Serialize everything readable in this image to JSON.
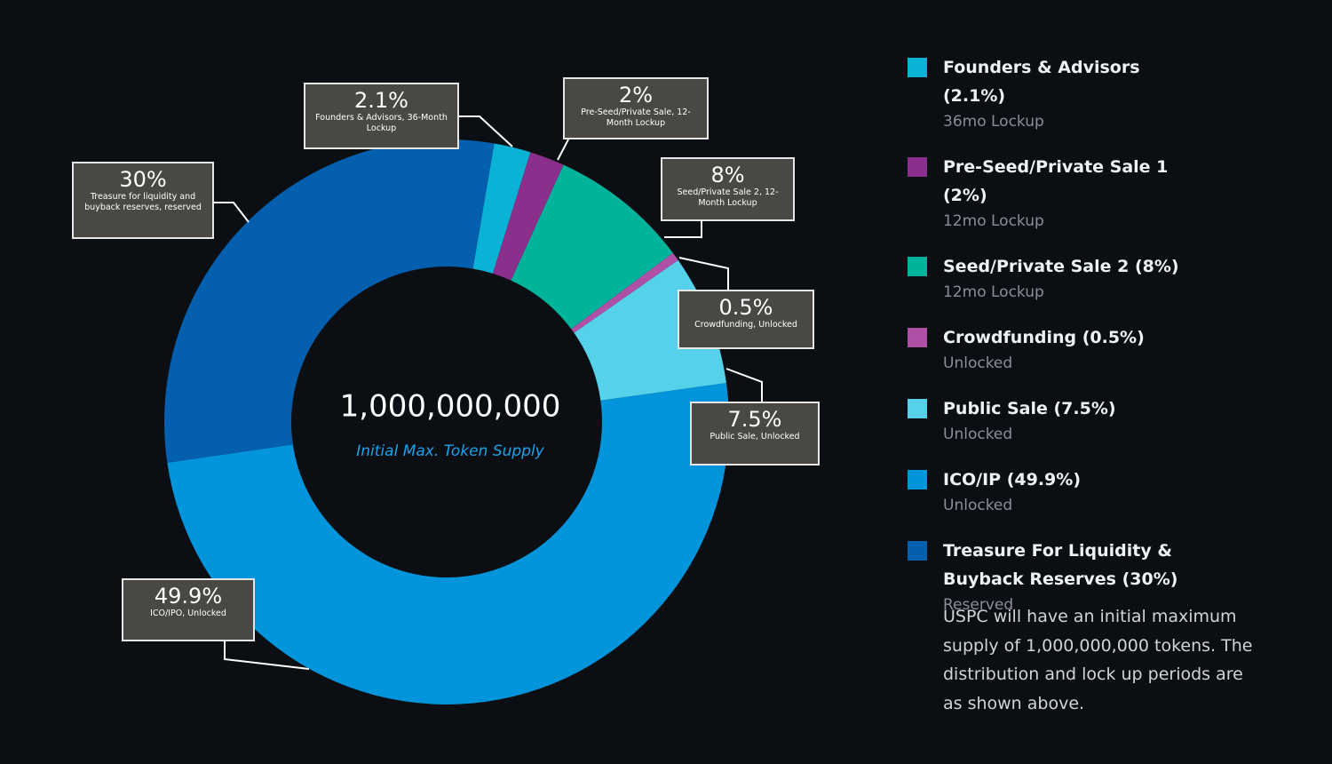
{
  "chart_data": {
    "type": "pie",
    "center_value": "1,000,000,000",
    "center_label": "Initial Max. Token Supply",
    "categories": [
      "Founders & Advisors (2.1%)",
      "Pre-Seed/Private Sale 1 (2%)",
      "Seed/Private Sale 2 (8%)",
      "Crowdfunding (0.5%)",
      "Public Sale (7.5%)",
      "ICO/IP (49.9%)",
      "Treasure For Liquidity & Buyback Reserves (30%)"
    ],
    "sublabels": [
      "36mo Lockup",
      "12mo Lockup",
      "12mo Lockup",
      "Unlocked",
      "Unlocked",
      "Unlocked",
      "Reserved"
    ],
    "values": [
      2.1,
      2,
      8,
      0.5,
      7.5,
      49.9,
      30
    ],
    "value_labels": [
      "2.1%",
      "2%",
      "8%",
      "0.5%",
      "7.5%",
      "49.9%",
      "30%"
    ],
    "callouts": [
      "Founders & Advisors, 36-Month Lockup",
      "Pre-Seed/Private Sale, 12-Month Lockup",
      "Seed/Private Sale 2, 12-Month Lockup",
      "Crowdfunding, Unlocked",
      "Public Sale, Unlocked",
      "ICO/IPO, Unlocked",
      "Treasure for liquidity and buyback reserves, reserved"
    ],
    "colors": [
      "#0ab3d6",
      "#8a2f8c",
      "#00b39b",
      "#b04fa6",
      "#55d2ea",
      "#0395dc",
      "#045fae"
    ],
    "note": "USPC will have an initial maximum supply of 1,000,000,000 tokens. The distribution and lock up periods are as shown above."
  }
}
